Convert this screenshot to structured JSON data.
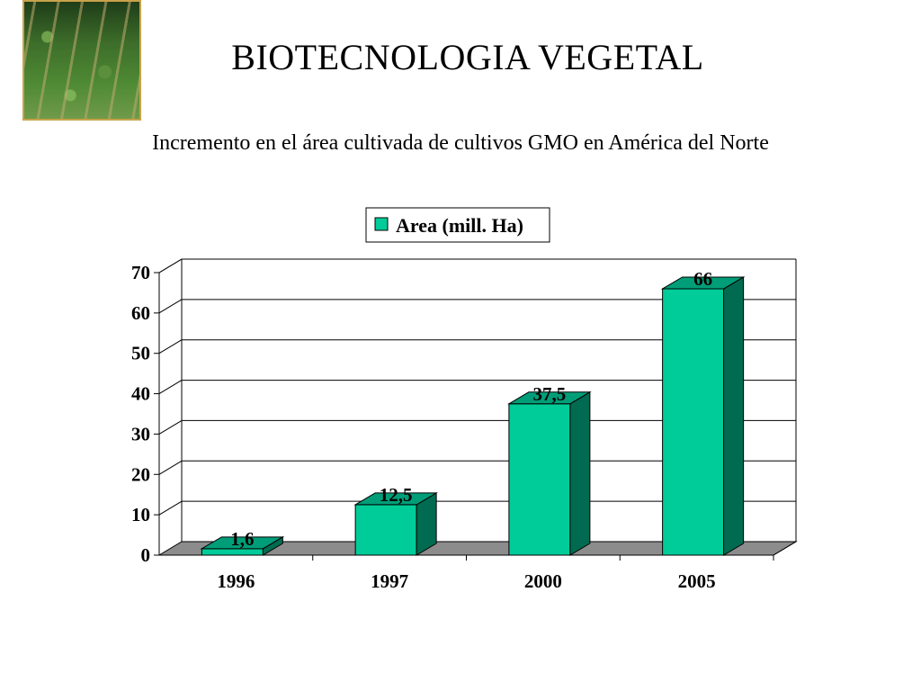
{
  "title": "BIOTECNOLOGIA VEGETAL",
  "subtitle": "Incremento en el área cultivada de cultivos GMO en América del Norte",
  "colors": {
    "bar_front": "#00CC99",
    "bar_side": "#006B50",
    "bar_top": "#009E78",
    "floor": "#8C8C8C"
  },
  "chart_data": {
    "type": "bar",
    "categories": [
      "1996",
      "1997",
      "2000",
      "2005"
    ],
    "series": [
      {
        "name": "Area (mill. Ha)",
        "values": [
          1.6,
          12.5,
          37.5,
          66
        ],
        "labels": [
          "1,6",
          "12,5",
          "37,5",
          "66"
        ]
      }
    ],
    "yticks": [
      "0",
      "10",
      "20",
      "30",
      "40",
      "50",
      "60",
      "70"
    ],
    "ylim": [
      0,
      70
    ],
    "grid": true,
    "legend": "top-center",
    "style": "3d"
  }
}
